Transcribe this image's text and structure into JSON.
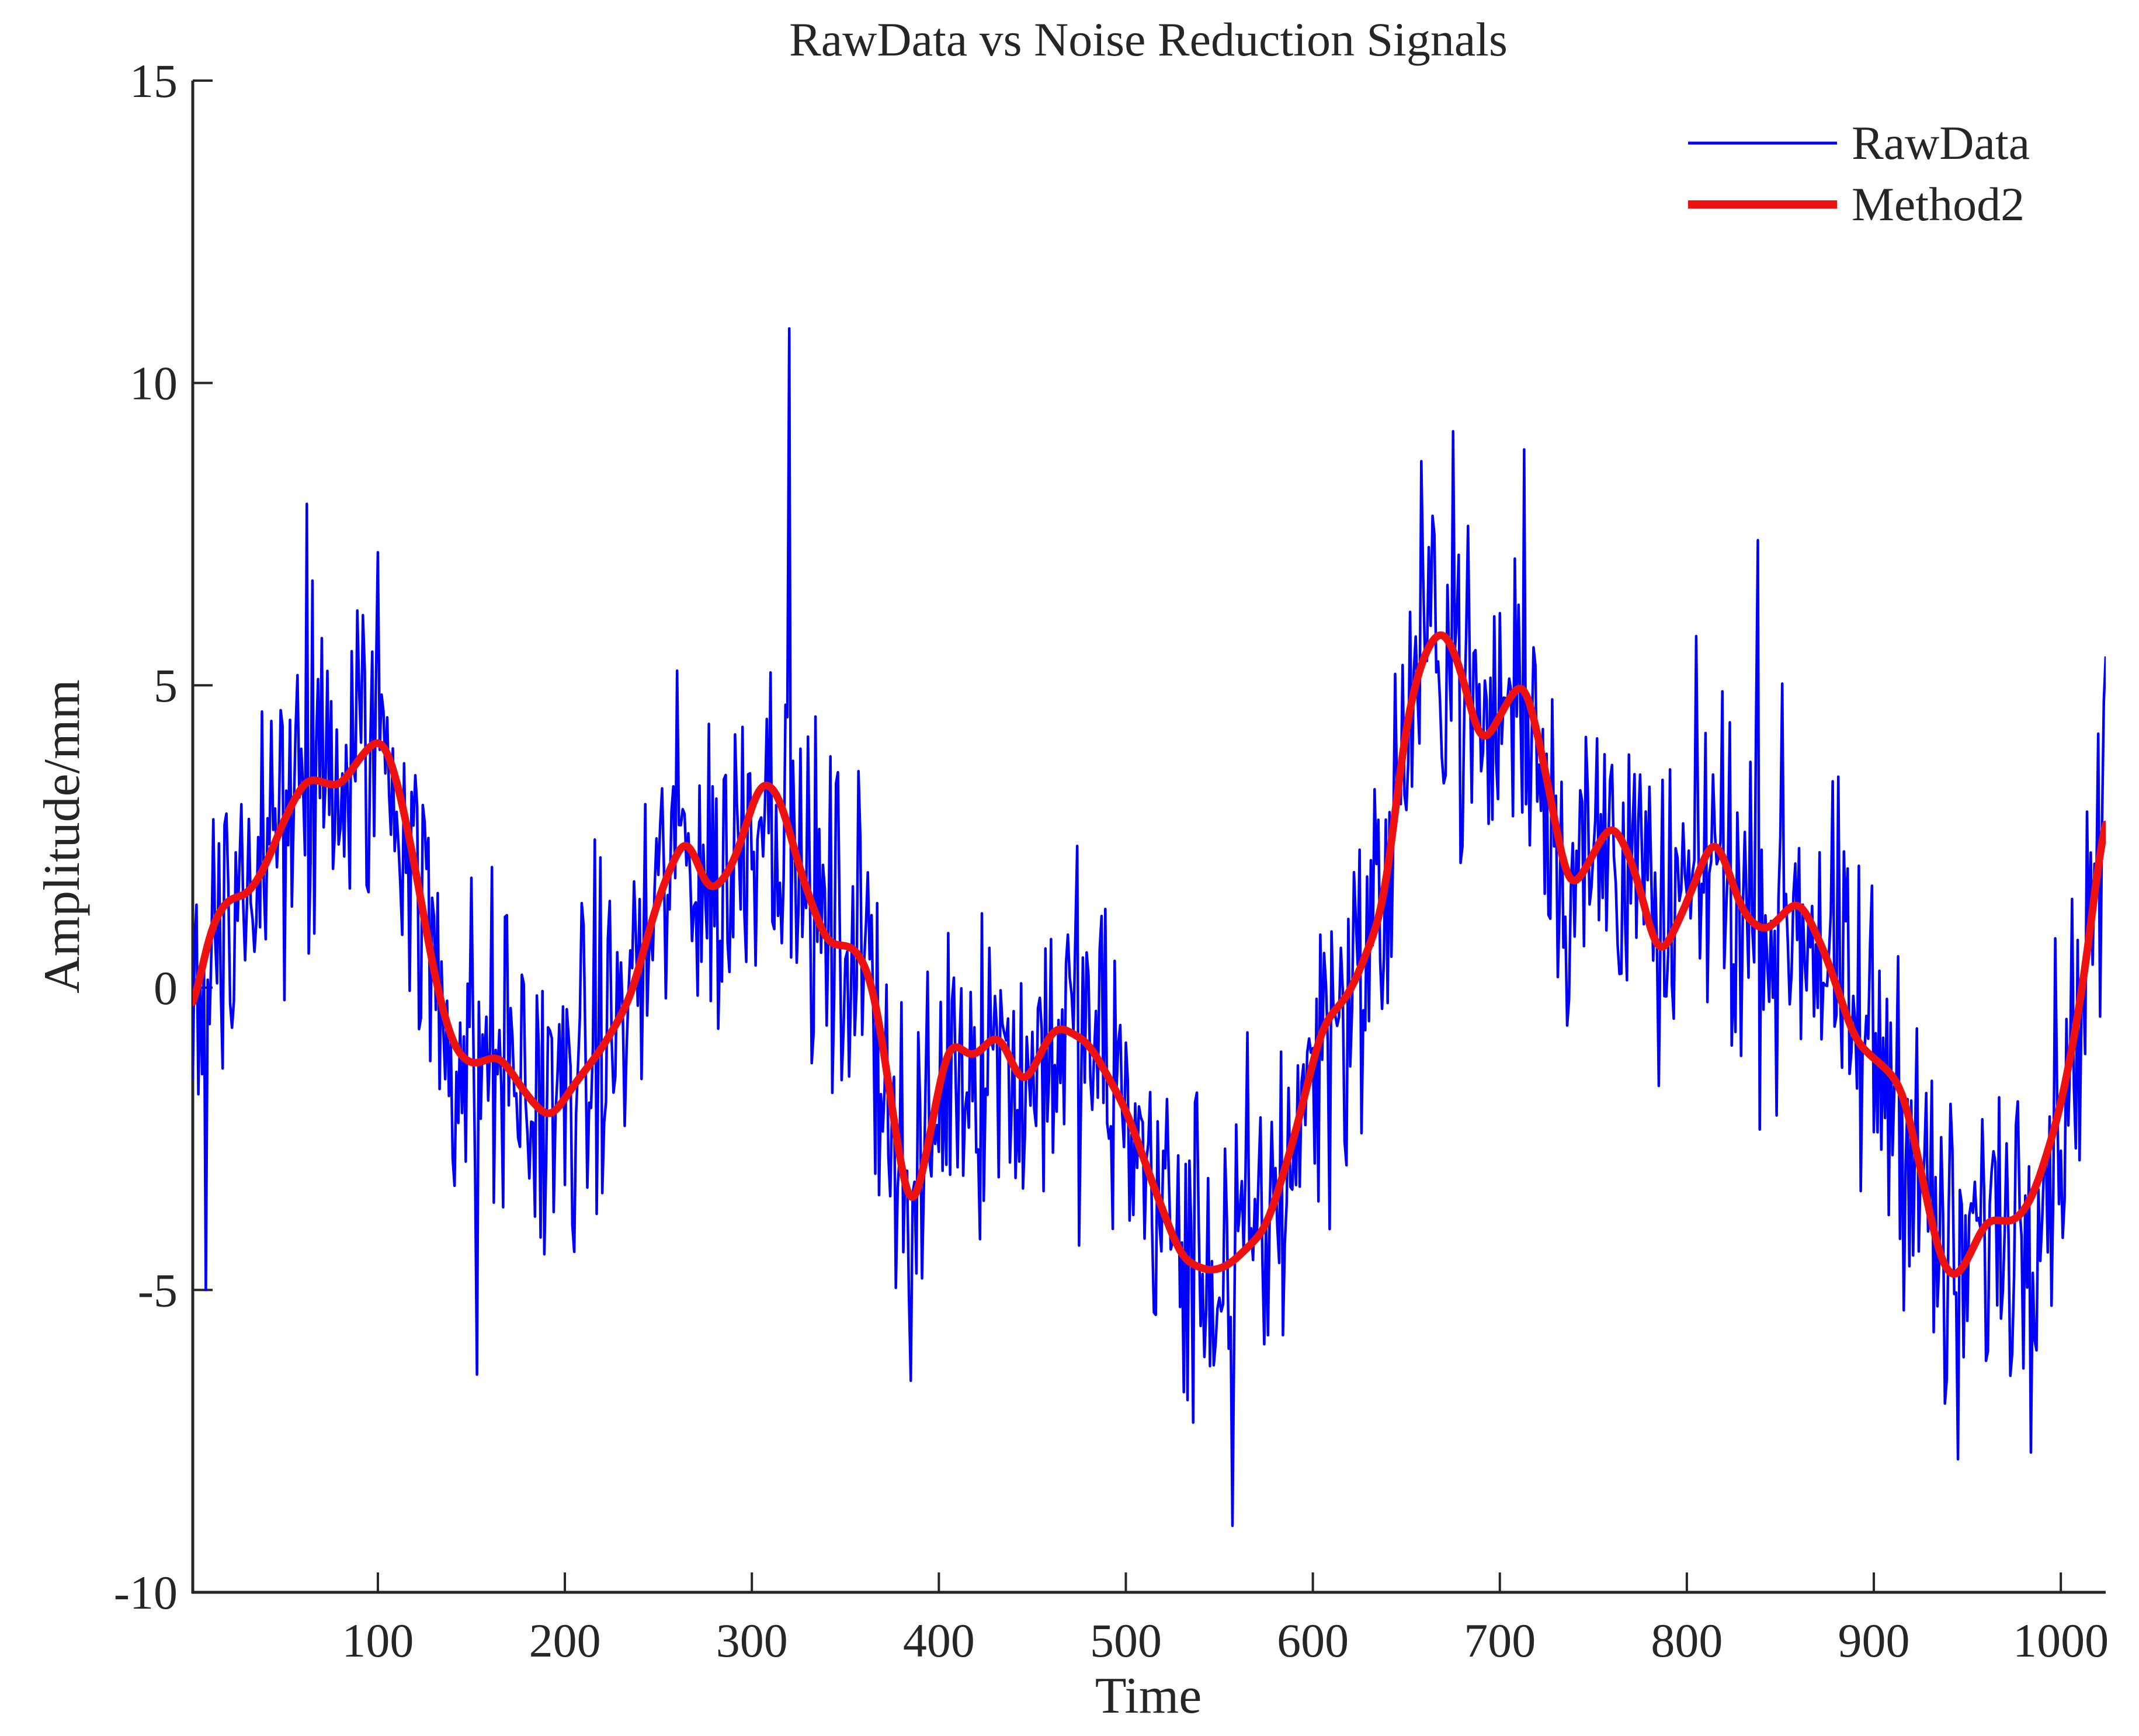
{
  "chart_data": {
    "type": "line",
    "title": "RawData vs Noise Reduction Signals",
    "xlabel": "Time",
    "ylabel": "Amplitude/mm",
    "xlim": [
      1,
      1024
    ],
    "ylim": [
      -10,
      15
    ],
    "xticks": [
      100,
      200,
      300,
      400,
      500,
      600,
      700,
      800,
      900,
      1000
    ],
    "xtick_labels": [
      "100",
      "200",
      "300",
      "400",
      "500",
      "600",
      "700",
      "800",
      "900",
      "1000"
    ],
    "yticks": [
      -10,
      -5,
      0,
      5,
      10,
      15
    ],
    "ytick_labels": [
      "-10",
      "-5",
      "0",
      "5",
      "10",
      "15"
    ],
    "grid": false,
    "legend_position": "top-right",
    "series": [
      {
        "name": "RawData",
        "color": "#0000ff",
        "style": "thin",
        "note": "Noisy signal: approximately the Method2 curve plus noise of about ±2.5 mm; 1024 samples. Notable spikes: 10.9 at t≈320, -8.9 at t≈557, -6.4 at t≈153, -6.5 at t≈385, 9.2 at t≈675, -7.8 at t≈945.",
        "spikes": [
          [
            320,
            10.9
          ],
          [
            557,
            -8.9
          ],
          [
            153,
            -6.4
          ],
          [
            385,
            -6.5
          ],
          [
            675,
            9.2
          ],
          [
            945,
            -7.8
          ],
          [
            8,
            -5.0
          ],
          [
            62,
            8.0
          ],
          [
            100,
            7.2
          ],
          [
            713,
            8.9
          ],
          [
            838,
            7.4
          ],
          [
            1020,
            4.2
          ]
        ]
      },
      {
        "name": "Method2",
        "color": "#ee1111",
        "style": "thick",
        "x": [
          1,
          10,
          20,
          30,
          40,
          50,
          62,
          70,
          80,
          90,
          102,
          110,
          120,
          130,
          140,
          150,
          165,
          180,
          192,
          205,
          220,
          235,
          250,
          265,
          277,
          290,
          305,
          315,
          325,
          340,
          355,
          365,
          375,
          385,
          395,
          405,
          418,
          432,
          445,
          462,
          480,
          500,
          515,
          530,
          545,
          555,
          575,
          590,
          605,
          620,
          638,
          650,
          660,
          670,
          680,
          690,
          700,
          713,
          725,
          737,
          750,
          760,
          772,
          785,
          800,
          815,
          830,
          842,
          860,
          875,
          890,
          905,
          915,
          925,
          935,
          943,
          952,
          960,
          975,
          985,
          1000,
          1012,
          1024
        ],
        "y": [
          -0.5,
          1.0,
          1.5,
          1.5,
          2.0,
          2.8,
          3.5,
          3.4,
          3.3,
          3.8,
          4.2,
          3.5,
          2.0,
          0.2,
          -1.0,
          -1.3,
          -1.1,
          -1.8,
          -2.2,
          -1.6,
          -1.0,
          -0.2,
          1.5,
          2.6,
          1.5,
          2.0,
          3.5,
          3.2,
          2.0,
          0.7,
          0.7,
          0.1,
          -2.0,
          -4.0,
          -2.5,
          -0.8,
          -1.2,
          -0.7,
          -1.7,
          -0.6,
          -0.9,
          -2.0,
          -3.3,
          -4.5,
          -4.7,
          -4.6,
          -4.0,
          -2.5,
          -0.6,
          -0.1,
          1.3,
          4.5,
          5.6,
          6.0,
          5.2,
          3.9,
          4.5,
          5.2,
          3.5,
          1.5,
          2.2,
          2.8,
          2.0,
          0.4,
          1.4,
          2.6,
          1.2,
          0.9,
          1.5,
          0.5,
          -0.9,
          -1.3,
          -1.6,
          -3.0,
          -4.5,
          -4.9,
          -4.4,
          -3.8,
          -3.9,
          -3.5,
          -2.0,
          0.0,
          3.1
        ]
      }
    ]
  }
}
